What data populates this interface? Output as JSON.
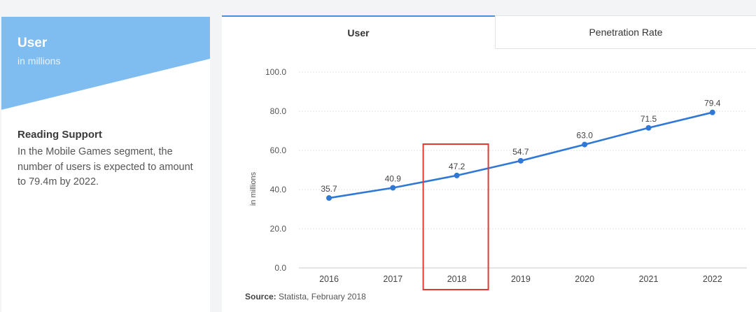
{
  "left_card": {
    "title": "User",
    "subtitle": "in millions",
    "support_title": "Reading Support",
    "support_text": "In the Mobile Games segment, the number of users is expected to amount to 79.4m by 2022.",
    "banner_color": "#7fbcef"
  },
  "tabs": [
    {
      "label": "User",
      "active": true
    },
    {
      "label": "Penetration Rate",
      "active": false
    }
  ],
  "source": {
    "label": "Source:",
    "text": "Statista, February 2018"
  },
  "highlight": {
    "category": "2018",
    "color": "#e53935"
  },
  "chart_data": {
    "type": "line",
    "categories": [
      "2016",
      "2017",
      "2018",
      "2019",
      "2020",
      "2021",
      "2022"
    ],
    "series": [
      {
        "values": [
          35.7,
          40.9,
          47.2,
          54.7,
          63.0,
          71.5,
          79.4
        ],
        "color": "#2f78d6"
      }
    ],
    "data_labels": [
      "35.7",
      "40.9",
      "47.2",
      "54.7",
      "63.0",
      "71.5",
      "79.4"
    ],
    "yticks": [
      "0.0",
      "20.0",
      "40.0",
      "60.0",
      "80.0",
      "100.0"
    ],
    "ylabel": "in millions",
    "ylim": [
      0,
      100
    ],
    "grid": true
  }
}
